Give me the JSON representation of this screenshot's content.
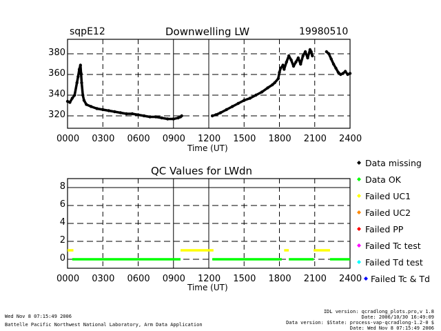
{
  "chart_data": [
    {
      "type": "scatter",
      "site": "sqpE12",
      "title": "Downwelling LW",
      "date": "19980510",
      "xlabel": "Time (UT)",
      "xlim": [
        0,
        2400
      ],
      "ylim": [
        308,
        394
      ],
      "x_ticks": [
        "0000",
        "0300",
        "0600",
        "0900",
        "1200",
        "1500",
        "1800",
        "2100",
        "2400"
      ],
      "y_ticks": [
        "320",
        "340",
        "360",
        "380"
      ],
      "y_tick_values": [
        320,
        340,
        360,
        380
      ],
      "x_tick_values": [
        0,
        300,
        600,
        900,
        1200,
        1500,
        1800,
        2100,
        2400
      ],
      "series": [
        {
          "color": "#000000",
          "points": [
            [
              0,
              334
            ],
            [
              20,
              333
            ],
            [
              40,
              337
            ],
            [
              60,
              340
            ],
            [
              80,
              352
            ],
            [
              90,
              358
            ],
            [
              100,
              365
            ],
            [
              110,
              369
            ],
            [
              115,
              361
            ],
            [
              120,
              352
            ],
            [
              130,
              340
            ],
            [
              140,
              335
            ],
            [
              160,
              331
            ],
            [
              200,
              329
            ],
            [
              250,
              327
            ],
            [
              300,
              326
            ],
            [
              350,
              325
            ],
            [
              400,
              324
            ],
            [
              450,
              323
            ],
            [
              500,
              322
            ],
            [
              550,
              322
            ],
            [
              600,
              321
            ],
            [
              650,
              320
            ],
            [
              700,
              319
            ],
            [
              750,
              319
            ],
            [
              800,
              318
            ],
            [
              850,
              317
            ],
            [
              900,
              317
            ],
            [
              940,
              318
            ],
            [
              960,
              319
            ],
            [
              970,
              320
            ],
            [
              1230,
              320
            ],
            [
              1260,
              321
            ],
            [
              1300,
              323
            ],
            [
              1350,
              326
            ],
            [
              1400,
              329
            ],
            [
              1450,
              332
            ],
            [
              1500,
              335
            ],
            [
              1550,
              337
            ],
            [
              1600,
              340
            ],
            [
              1650,
              343
            ],
            [
              1700,
              347
            ],
            [
              1740,
              350
            ],
            [
              1760,
              352
            ],
            [
              1790,
              356
            ],
            [
              1800,
              362
            ],
            [
              1810,
              366
            ],
            [
              1830,
              369
            ],
            [
              1840,
              365
            ],
            [
              1860,
              372
            ],
            [
              1880,
              378
            ],
            [
              1900,
              374
            ],
            [
              1920,
              368
            ],
            [
              1940,
              372
            ],
            [
              1960,
              376
            ],
            [
              1980,
              370
            ],
            [
              2000,
              378
            ],
            [
              2020,
              382
            ],
            [
              2040,
              376
            ],
            [
              2060,
              384
            ],
            [
              2070,
              382
            ],
            [
              2080,
              378
            ],
            [
              2200,
              382
            ],
            [
              2220,
              380
            ],
            [
              2240,
              375
            ],
            [
              2260,
              370
            ],
            [
              2280,
              366
            ],
            [
              2300,
              362
            ],
            [
              2320,
              360
            ],
            [
              2340,
              361
            ],
            [
              2360,
              363
            ],
            [
              2380,
              360
            ],
            [
              2400,
              361
            ]
          ]
        }
      ]
    },
    {
      "type": "scatter",
      "title": "QC Values for LWdn",
      "xlabel": "Time (UT)",
      "xlim": [
        0,
        2400
      ],
      "ylim": [
        -1,
        9
      ],
      "x_ticks": [
        "0000",
        "0300",
        "0600",
        "0900",
        "1200",
        "1500",
        "1800",
        "2100",
        "2400"
      ],
      "x_tick_values": [
        0,
        300,
        600,
        900,
        1200,
        1500,
        1800,
        2100,
        2400
      ],
      "y_ticks": [
        "0",
        "2",
        "4",
        "6",
        "8"
      ],
      "y_tick_values": [
        0,
        2,
        4,
        6,
        8
      ],
      "segments": [
        {
          "color": "#ffff00",
          "value": 1,
          "from": 0,
          "to": 50
        },
        {
          "color": "#00ff00",
          "value": 0,
          "from": 40,
          "to": 960
        },
        {
          "color": "#ffff00",
          "value": 1,
          "from": 960,
          "to": 1240
        },
        {
          "color": "#00ff00",
          "value": 0,
          "from": 1230,
          "to": 1820
        },
        {
          "color": "#ffff00",
          "value": 1,
          "from": 1840,
          "to": 1880
        },
        {
          "color": "#00ff00",
          "value": 0,
          "from": 1880,
          "to": 2090
        },
        {
          "color": "#ffff00",
          "value": 1,
          "from": 2090,
          "to": 2230
        },
        {
          "color": "#00ff00",
          "value": 0,
          "from": 2230,
          "to": 2400
        }
      ]
    }
  ],
  "legend": [
    {
      "label": "Data missing",
      "color": "#000000"
    },
    {
      "label": "Data OK",
      "color": "#00ff00"
    },
    {
      "label": "Failed UC1",
      "color": "#ffff00"
    },
    {
      "label": "Failed UC2",
      "color": "#ff8800"
    },
    {
      "label": "Failed PP",
      "color": "#ff0000"
    },
    {
      "label": "Failed Tc test",
      "color": "#ff00ff"
    },
    {
      "label": "Failed Td test",
      "color": "#00ffff"
    },
    {
      "label": "Failed Tc & Td",
      "color": "#0000ff"
    }
  ],
  "footer": {
    "timestamp": "Wed Nov  8 07:15:49 2006",
    "org": "Battelle Pacific Northwest National Laboratory, Arm Data Application",
    "idl": "IDL version: qcradlong_plots.pro,v 1.8",
    "date": "Date: 2006/10/30 16:49:09",
    "dataver": "Data version: $State: process-vap-qcradlong-1.2-0 $",
    "date2": "Date: Wed Nov  8 07:15:49 2006"
  }
}
